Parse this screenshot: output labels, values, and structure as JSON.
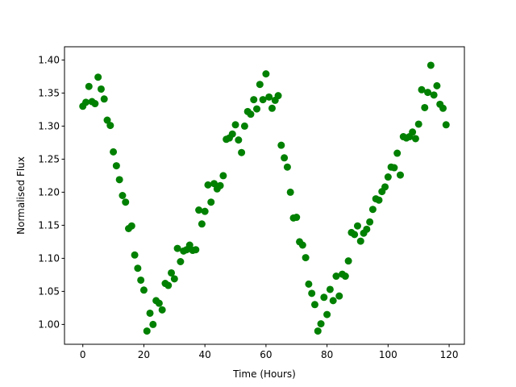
{
  "chart_data": {
    "type": "scatter",
    "title": "",
    "xlabel": "Time (Hours)",
    "ylabel": "Normalised Flux",
    "xlim": [
      -6,
      125
    ],
    "ylim": [
      0.97,
      1.42
    ],
    "xticks": [
      0,
      20,
      40,
      60,
      80,
      100,
      120
    ],
    "xtick_labels": [
      "0",
      "20",
      "40",
      "60",
      "80",
      "100",
      "120"
    ],
    "yticks": [
      1.0,
      1.05,
      1.1,
      1.15,
      1.2,
      1.25,
      1.3,
      1.35,
      1.4
    ],
    "ytick_labels": [
      "1.00",
      "1.05",
      "1.10",
      "1.15",
      "1.20",
      "1.25",
      "1.30",
      "1.35",
      "1.40"
    ],
    "grid": false,
    "marker_color": "#008000",
    "series": [
      {
        "x": [
          0,
          1,
          2,
          3,
          4,
          5,
          6,
          7,
          8,
          9,
          10,
          11,
          12,
          13,
          14,
          15,
          16,
          17,
          18,
          19,
          20,
          21,
          22,
          23,
          24,
          25,
          26,
          27,
          28,
          29,
          30,
          31,
          32,
          33,
          34,
          35,
          36,
          37,
          38,
          39,
          40,
          41,
          42,
          43,
          44,
          45,
          46,
          47,
          48,
          49,
          50,
          51,
          52,
          53,
          54,
          55,
          56,
          57,
          58,
          59,
          60,
          61,
          62,
          63,
          64,
          65,
          66,
          67,
          68,
          69,
          70,
          71,
          72,
          73,
          74,
          75,
          76,
          77,
          78,
          79,
          80,
          81,
          82,
          83,
          84,
          85,
          86,
          87,
          88,
          89,
          90,
          91,
          92,
          93,
          94,
          95,
          96,
          97,
          98,
          99,
          100,
          101,
          102,
          103,
          104,
          105,
          106,
          107,
          108,
          109,
          110,
          111,
          112,
          113,
          114,
          115,
          116,
          117,
          118,
          119
        ],
        "y": [
          1.33,
          1.336,
          1.36,
          1.337,
          1.334,
          1.374,
          1.356,
          1.341,
          1.309,
          1.301,
          1.261,
          1.24,
          1.219,
          1.195,
          1.185,
          1.145,
          1.149,
          1.105,
          1.085,
          1.067,
          1.052,
          0.99,
          1.017,
          1.0,
          1.036,
          1.032,
          1.022,
          1.062,
          1.059,
          1.078,
          1.069,
          1.115,
          1.095,
          1.111,
          1.113,
          1.12,
          1.112,
          1.113,
          1.173,
          1.152,
          1.171,
          1.211,
          1.185,
          1.213,
          1.205,
          1.21,
          1.225,
          1.28,
          1.282,
          1.288,
          1.302,
          1.279,
          1.26,
          1.3,
          1.322,
          1.318,
          1.34,
          1.326,
          1.363,
          1.34,
          1.379,
          1.344,
          1.327,
          1.339,
          1.346,
          1.271,
          1.252,
          1.238,
          1.2,
          1.161,
          1.162,
          1.125,
          1.12,
          1.101,
          1.061,
          1.047,
          1.03,
          0.99,
          1.001,
          1.041,
          1.015,
          1.053,
          1.036,
          1.073,
          1.043,
          1.076,
          1.073,
          1.096,
          1.139,
          1.136,
          1.149,
          1.126,
          1.138,
          1.144,
          1.155,
          1.174,
          1.19,
          1.188,
          1.201,
          1.208,
          1.223,
          1.238,
          1.237,
          1.259,
          1.226,
          1.284,
          1.282,
          1.284,
          1.291,
          1.281,
          1.303,
          1.355,
          1.328,
          1.351,
          1.392,
          1.347,
          1.361,
          1.333,
          1.327,
          1.302
        ]
      }
    ]
  }
}
